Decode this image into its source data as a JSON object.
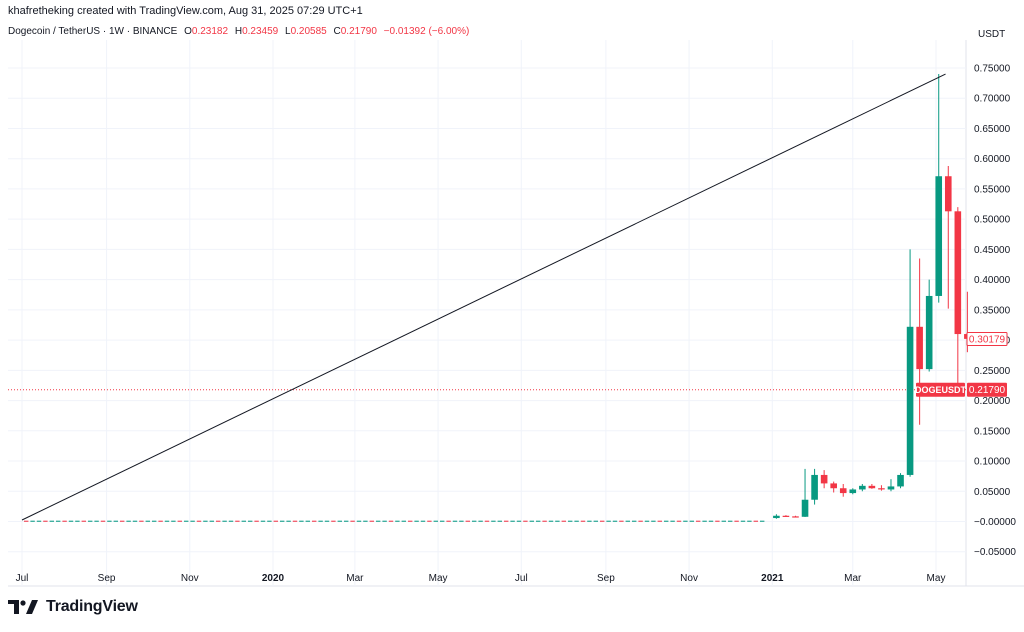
{
  "header": {
    "caption": "khafretheking created with TradingView.com, Aug 31, 2025 07:29 UTC+1"
  },
  "legend": {
    "title": "Dogecoin / TetherUS · 1W · BINANCE",
    "open_label": "O",
    "open": "0.23182",
    "high_label": "H",
    "high": "0.23459",
    "low_label": "L",
    "low": "0.20585",
    "close_label": "C",
    "close": "0.21790",
    "change": "−0.01392 (−6.00%)"
  },
  "brand": {
    "name": "TradingView",
    "icon": "tradingview-logo-icon"
  },
  "colors": {
    "up": "#089981",
    "down": "#f23645",
    "line": "#131722",
    "grid": "#f0f3fa",
    "price_line": "#f23645"
  },
  "chart_data": {
    "type": "candlestick",
    "title": "Dogecoin / TetherUS · 1W · BINANCE",
    "currency_label": "USDT",
    "ylim": [
      -0.075,
      0.78
    ],
    "y_ticks": [
      "0.75000",
      "0.70000",
      "0.65000",
      "0.60000",
      "0.55000",
      "0.50000",
      "0.45000",
      "0.40000",
      "0.35000",
      "0.30000",
      "0.25000",
      "0.20000",
      "0.15000",
      "0.10000",
      "0.05000",
      "−0.00000",
      "−0.05000"
    ],
    "y_tick_values": [
      0.75,
      0.7,
      0.65,
      0.6,
      0.55,
      0.5,
      0.45,
      0.4,
      0.35,
      0.3,
      0.25,
      0.2,
      0.15,
      0.1,
      0.05,
      0.0,
      -0.05
    ],
    "x_ticks": [
      {
        "label": "Jul",
        "date": "2019-07-01",
        "bold": false
      },
      {
        "label": "Sep",
        "date": "2019-09-01",
        "bold": false
      },
      {
        "label": "Nov",
        "date": "2019-11-01",
        "bold": false
      },
      {
        "label": "2020",
        "date": "2020-01-01",
        "bold": true
      },
      {
        "label": "Mar",
        "date": "2020-03-01",
        "bold": false
      },
      {
        "label": "May",
        "date": "2020-05-01",
        "bold": false
      },
      {
        "label": "Jul",
        "date": "2020-07-01",
        "bold": false
      },
      {
        "label": "Sep",
        "date": "2020-09-01",
        "bold": false
      },
      {
        "label": "Nov",
        "date": "2020-11-01",
        "bold": false
      },
      {
        "label": "2021",
        "date": "2021-01-01",
        "bold": true
      },
      {
        "label": "Mar",
        "date": "2021-03-01",
        "bold": false
      },
      {
        "label": "May",
        "date": "2021-05-01",
        "bold": false
      }
    ],
    "xlim": [
      "2019-06-20",
      "2021-06-20"
    ],
    "candles": [
      {
        "date": "2021-01-04",
        "o": 0.0057,
        "h": 0.012,
        "l": 0.0045,
        "c": 0.0095
      },
      {
        "date": "2021-01-11",
        "o": 0.0095,
        "h": 0.0105,
        "l": 0.0075,
        "c": 0.0085
      },
      {
        "date": "2021-01-18",
        "o": 0.0085,
        "h": 0.0095,
        "l": 0.007,
        "c": 0.0078
      },
      {
        "date": "2021-01-25",
        "o": 0.0078,
        "h": 0.087,
        "l": 0.0075,
        "c": 0.036
      },
      {
        "date": "2021-02-01",
        "o": 0.036,
        "h": 0.087,
        "l": 0.028,
        "c": 0.077
      },
      {
        "date": "2021-02-08",
        "o": 0.077,
        "h": 0.085,
        "l": 0.055,
        "c": 0.063
      },
      {
        "date": "2021-02-15",
        "o": 0.063,
        "h": 0.066,
        "l": 0.048,
        "c": 0.055
      },
      {
        "date": "2021-02-22",
        "o": 0.055,
        "h": 0.062,
        "l": 0.041,
        "c": 0.047
      },
      {
        "date": "2021-03-01",
        "o": 0.047,
        "h": 0.055,
        "l": 0.045,
        "c": 0.053
      },
      {
        "date": "2021-03-08",
        "o": 0.053,
        "h": 0.062,
        "l": 0.05,
        "c": 0.059
      },
      {
        "date": "2021-03-15",
        "o": 0.059,
        "h": 0.062,
        "l": 0.054,
        "c": 0.055
      },
      {
        "date": "2021-03-22",
        "o": 0.055,
        "h": 0.06,
        "l": 0.051,
        "c": 0.053
      },
      {
        "date": "2021-03-29",
        "o": 0.053,
        "h": 0.07,
        "l": 0.05,
        "c": 0.058
      },
      {
        "date": "2021-04-05",
        "o": 0.058,
        "h": 0.08,
        "l": 0.055,
        "c": 0.077
      },
      {
        "date": "2021-04-12",
        "o": 0.077,
        "h": 0.45,
        "l": 0.074,
        "c": 0.322
      },
      {
        "date": "2021-04-19",
        "o": 0.322,
        "h": 0.435,
        "l": 0.16,
        "c": 0.252
      },
      {
        "date": "2021-04-26",
        "o": 0.252,
        "h": 0.4,
        "l": 0.248,
        "c": 0.373
      },
      {
        "date": "2021-05-03",
        "o": 0.373,
        "h": 0.74,
        "l": 0.362,
        "c": 0.571
      },
      {
        "date": "2021-05-10",
        "o": 0.571,
        "h": 0.588,
        "l": 0.352,
        "c": 0.513
      },
      {
        "date": "2021-05-17",
        "o": 0.513,
        "h": 0.52,
        "l": 0.21,
        "c": 0.31
      },
      {
        "date": "2021-05-24",
        "o": 0.31,
        "h": 0.38,
        "l": 0.28,
        "c": 0.302
      }
    ],
    "trend_line": {
      "from": {
        "date": "2019-07-01",
        "value": 0.0025
      },
      "to": {
        "date": "2021-05-08",
        "value": 0.74
      }
    },
    "dotted_price_line": 0.2179,
    "price_labels": [
      {
        "text": "0.30179",
        "value": 0.30179,
        "style": "outline"
      },
      {
        "text": "0.21790",
        "value": 0.2179,
        "style": "filled"
      }
    ],
    "symbol_label": {
      "text": "DOGEUSDT",
      "value": 0.2179
    }
  }
}
